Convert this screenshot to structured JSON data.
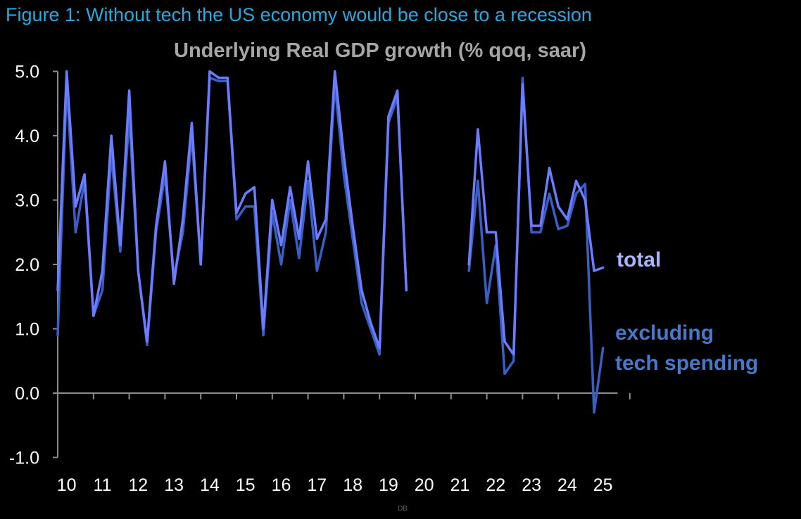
{
  "figure_title": "Figure 1: Without tech the US economy would be close to a recession",
  "source_label": "DB",
  "chart_data": {
    "type": "line",
    "title": "Underlying Real GDP growth (% qoq, saar)",
    "xlabel": "",
    "ylabel": "",
    "ylim": [
      -1.0,
      5.0
    ],
    "xlim": [
      2010.0,
      2025.6
    ],
    "grid": false,
    "y_ticks": [
      "-1.0",
      "0.0",
      "1.0",
      "2.0",
      "3.0",
      "4.0",
      "5.0"
    ],
    "x_ticks": [
      "10",
      "11",
      "12",
      "13",
      "14",
      "15",
      "16",
      "17",
      "18",
      "19",
      "20",
      "21",
      "22",
      "23",
      "24",
      "25"
    ],
    "colors": {
      "total": "#6b7cff",
      "excluding": "#3a5fc4",
      "total_label": "#a9b6ff",
      "excluding_label": "#4a78c8"
    },
    "series": [
      {
        "name": "total",
        "label": "total",
        "points": [
          [
            2010.0,
            1.6
          ],
          [
            2010.25,
            5.0
          ],
          [
            2010.5,
            2.9
          ],
          [
            2010.75,
            3.4
          ],
          [
            2011.0,
            1.2
          ],
          [
            2011.25,
            1.9
          ],
          [
            2011.5,
            4.0
          ],
          [
            2011.75,
            2.3
          ],
          [
            2012.0,
            4.7
          ],
          [
            2012.25,
            1.9
          ],
          [
            2012.5,
            0.8
          ],
          [
            2012.75,
            2.6
          ],
          [
            2013.0,
            3.6
          ],
          [
            2013.25,
            1.7
          ],
          [
            2013.5,
            2.7
          ],
          [
            2013.75,
            4.2
          ],
          [
            2014.0,
            2.0
          ],
          [
            2014.25,
            5.0
          ],
          [
            2014.5,
            4.9
          ],
          [
            2014.75,
            4.9
          ],
          [
            2015.0,
            2.8
          ],
          [
            2015.25,
            3.1
          ],
          [
            2015.5,
            3.2
          ],
          [
            2015.75,
            1.0
          ],
          [
            2016.0,
            3.0
          ],
          [
            2016.25,
            2.3
          ],
          [
            2016.5,
            3.2
          ],
          [
            2016.75,
            2.4
          ],
          [
            2017.0,
            3.6
          ],
          [
            2017.25,
            2.4
          ],
          [
            2017.5,
            2.7
          ],
          [
            2017.75,
            5.0
          ],
          [
            2018.0,
            3.7
          ],
          [
            2018.25,
            2.6
          ],
          [
            2018.5,
            1.6
          ],
          [
            2018.75,
            1.1
          ],
          [
            2019.0,
            0.7
          ],
          [
            2019.25,
            4.3
          ],
          [
            2019.5,
            4.7
          ],
          [
            2019.75,
            1.6
          ],
          null,
          [
            2021.5,
            2.0
          ],
          [
            2021.75,
            4.1
          ],
          [
            2022.0,
            2.5
          ],
          [
            2022.25,
            2.5
          ],
          [
            2022.5,
            0.8
          ],
          [
            2022.75,
            0.6
          ],
          [
            2023.0,
            4.8
          ],
          [
            2023.25,
            2.6
          ],
          [
            2023.5,
            2.6
          ],
          [
            2023.75,
            3.5
          ],
          [
            2024.0,
            2.9
          ],
          [
            2024.25,
            2.7
          ],
          [
            2024.5,
            3.3
          ],
          [
            2024.75,
            3.0
          ],
          [
            2025.0,
            1.9
          ],
          [
            2025.25,
            1.95
          ]
        ]
      },
      {
        "name": "excluding tech spending",
        "label": [
          "excluding",
          "tech spending"
        ],
        "points": [
          [
            2010.0,
            0.9
          ],
          [
            2010.25,
            4.8
          ],
          [
            2010.5,
            2.5
          ],
          [
            2010.75,
            3.3
          ],
          [
            2011.0,
            1.2
          ],
          [
            2011.25,
            1.6
          ],
          [
            2011.5,
            3.7
          ],
          [
            2011.75,
            2.2
          ],
          [
            2012.0,
            4.3
          ],
          [
            2012.25,
            1.9
          ],
          [
            2012.5,
            0.75
          ],
          [
            2012.75,
            2.5
          ],
          [
            2013.0,
            3.4
          ],
          [
            2013.25,
            1.8
          ],
          [
            2013.5,
            2.5
          ],
          [
            2013.75,
            4.0
          ],
          [
            2014.0,
            2.0
          ],
          [
            2014.25,
            4.9
          ],
          [
            2014.5,
            4.85
          ],
          [
            2014.75,
            4.85
          ],
          [
            2015.0,
            2.7
          ],
          [
            2015.25,
            2.9
          ],
          [
            2015.5,
            2.9
          ],
          [
            2015.75,
            0.9
          ],
          [
            2016.0,
            2.8
          ],
          [
            2016.25,
            2.0
          ],
          [
            2016.5,
            3.0
          ],
          [
            2016.75,
            2.1
          ],
          [
            2017.0,
            3.3
          ],
          [
            2017.25,
            1.9
          ],
          [
            2017.5,
            2.5
          ],
          [
            2017.75,
            4.8
          ],
          [
            2018.0,
            3.4
          ],
          [
            2018.25,
            2.4
          ],
          [
            2018.5,
            1.4
          ],
          [
            2018.75,
            1.0
          ],
          [
            2019.0,
            0.6
          ],
          [
            2019.25,
            4.2
          ],
          [
            2019.5,
            4.6
          ],
          [
            2019.75,
            1.6
          ],
          null,
          [
            2021.5,
            1.9
          ],
          [
            2021.75,
            3.3
          ],
          [
            2022.0,
            1.4
          ],
          [
            2022.25,
            2.3
          ],
          [
            2022.5,
            0.3
          ],
          [
            2022.75,
            0.5
          ],
          [
            2023.0,
            4.9
          ],
          [
            2023.25,
            2.5
          ],
          [
            2023.5,
            2.5
          ],
          [
            2023.75,
            3.1
          ],
          [
            2024.0,
            2.55
          ],
          [
            2024.25,
            2.6
          ],
          [
            2024.5,
            3.1
          ],
          [
            2024.75,
            3.25
          ],
          [
            2025.0,
            -0.3
          ],
          [
            2025.25,
            0.7
          ]
        ]
      }
    ]
  }
}
